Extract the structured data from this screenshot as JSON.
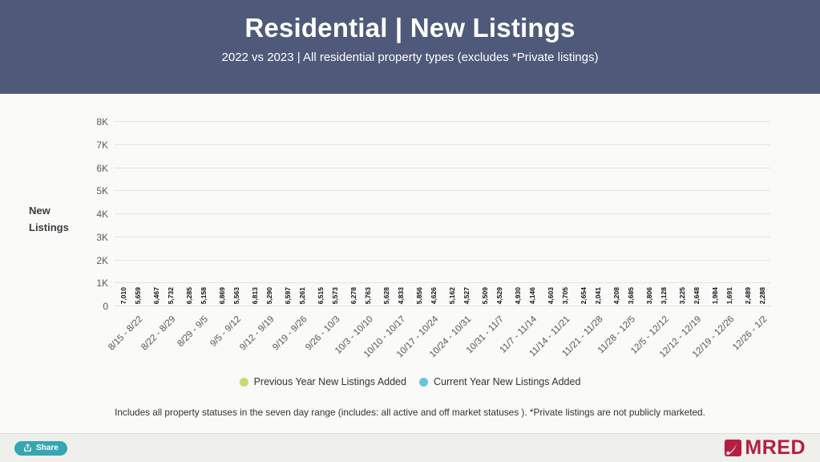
{
  "header": {
    "title": "Residential | New Listings",
    "subtitle": "2022 vs 2023 | All residential property types (excludes *Private listings)"
  },
  "axis_title": {
    "line1": "New",
    "line2": "Listings"
  },
  "chart_data": {
    "type": "bar",
    "title": "Residential | New Listings — 2022 vs 2023 weekly new listings",
    "xlabel": "",
    "ylabel": "New Listings",
    "ylim": [
      0,
      8000
    ],
    "ytick_step": 1000,
    "ytick_labels": [
      "0",
      "1K",
      "2K",
      "3K",
      "4K",
      "5K",
      "6K",
      "7K",
      "8K"
    ],
    "grid": true,
    "legend_position": "bottom",
    "categories": [
      "8/15 - 8/22",
      "8/22 - 8/29",
      "8/29 - 9/5",
      "9/5 - 9/12",
      "9/12 - 9/19",
      "9/19 - 9/26",
      "9/26 - 10/3",
      "10/3 - 10/10",
      "10/10 - 10/17",
      "10/17 - 10/24",
      "10/24 - 10/31",
      "10/31 - 11/7",
      "11/7 - 11/14",
      "11/14 - 11/21",
      "11/21 - 11/28",
      "11/28 - 12/5",
      "12/5 - 12/12",
      "12/12 - 12/19",
      "12/19 - 12/26",
      "12/26 - 1/2"
    ],
    "series": [
      {
        "name": "Previous Year New Listings Added",
        "color": "#c7dc6e",
        "values": [
          7010,
          6467,
          6285,
          6869,
          6813,
          6597,
          6515,
          6278,
          5628,
          5856,
          5162,
          5509,
          4930,
          4603,
          2654,
          4208,
          3806,
          3225,
          1984,
          2489
        ]
      },
      {
        "name": "Current Year New Listings Added",
        "color": "#69c3dd",
        "values": [
          5659,
          5732,
          5158,
          5563,
          5290,
          5261,
          5573,
          5763,
          4833,
          4626,
          4527,
          4529,
          4146,
          3705,
          2041,
          3685,
          3128,
          2648,
          1691,
          2288
        ]
      }
    ]
  },
  "footnote": "Includes all property statuses in the seven day range (includes: all active and off market statuses ). *Private listings are not publicly marketed.",
  "footer": {
    "share_label": "Share",
    "logo_text": "MRED"
  },
  "colors": {
    "header_bg": "#4f5a7b",
    "previous_year": "#c7dc6e",
    "current_year": "#69c3dd",
    "share_button": "#35a6b2",
    "logo_red": "#b41f41",
    "gridline": "#e4e4e1"
  }
}
